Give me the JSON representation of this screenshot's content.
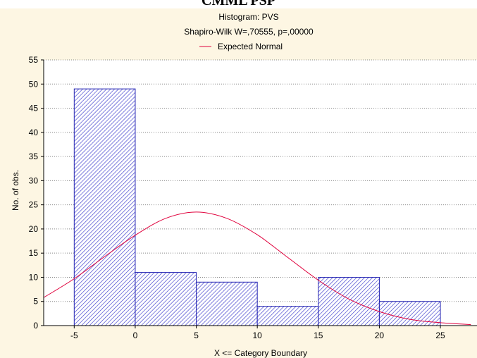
{
  "page_top_cutoff_text": "CMML PSP",
  "chart_data": {
    "type": "bar",
    "title": "Histogram: PVS",
    "subtitle": "Shapiro-Wilk W=,70555, p=,00000",
    "legend": [
      {
        "name": "Expected Normal",
        "color": "#e0003c",
        "placement": "top-center"
      }
    ],
    "xlabel": "X <= Category Boundary",
    "ylabel": "No. of obs.",
    "xlim": [
      -7.5,
      28
    ],
    "ylim": [
      0,
      55
    ],
    "xticks": [
      -5,
      0,
      5,
      10,
      15,
      20,
      25
    ],
    "yticks": [
      0,
      5,
      10,
      15,
      20,
      25,
      30,
      35,
      40,
      45,
      50,
      55
    ],
    "grid": "horizontal dotted",
    "bins": [
      {
        "from": -5,
        "to": 0,
        "count": 49
      },
      {
        "from": 0,
        "to": 5,
        "count": 11
      },
      {
        "from": 5,
        "to": 10,
        "count": 9
      },
      {
        "from": 10,
        "to": 15,
        "count": 4
      },
      {
        "from": 15,
        "to": 20,
        "count": 10
      },
      {
        "from": 20,
        "to": 25,
        "count": 5
      }
    ],
    "expected_normal": {
      "x": [
        -7.5,
        -5,
        -2.5,
        0,
        2.5,
        5,
        7.5,
        10,
        12.5,
        15,
        17.5,
        20,
        22.5,
        25,
        27.5
      ],
      "y": [
        5.8,
        9.7,
        14.3,
        18.7,
        22.2,
        23.5,
        22.2,
        18.8,
        14.1,
        9.4,
        5.5,
        2.9,
        1.3,
        0.6,
        0.2
      ]
    },
    "colors": {
      "bar_stroke": "#2020b0",
      "bar_hatch": "#3a3acc",
      "bar_fill": "#ffffff",
      "curve": "#e0003c",
      "panel_bg": "#fdf6e3"
    }
  }
}
